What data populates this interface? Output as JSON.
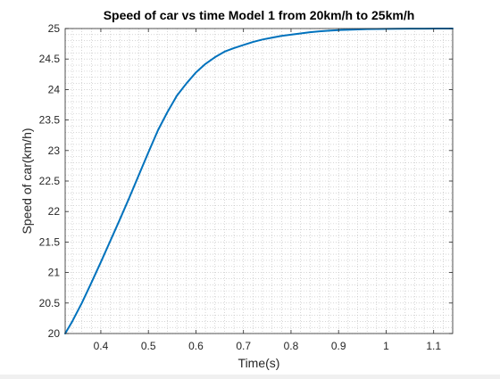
{
  "chart_data": {
    "type": "line",
    "title": "Speed of car vs time Model 1 from 20km/h to 25km/h",
    "xlabel": "Time(s)",
    "ylabel": "Speed of car(km/h)",
    "xlim": [
      0.325,
      1.14
    ],
    "ylim": [
      20,
      25
    ],
    "xticks": [
      0.4,
      0.5,
      0.6,
      0.7,
      0.8,
      0.9,
      1,
      1.1
    ],
    "xtick_labels": [
      "0.4",
      "0.5",
      "0.6",
      "0.7",
      "0.8",
      "0.9",
      "1",
      "1.1"
    ],
    "yticks": [
      20,
      20.5,
      21,
      21.5,
      22,
      22.5,
      23,
      23.5,
      24,
      24.5,
      25
    ],
    "ytick_labels": [
      "20",
      "20.5",
      "21",
      "21.5",
      "22",
      "22.5",
      "23",
      "23.5",
      "24",
      "24.5",
      "25"
    ],
    "grid": true,
    "grid_style": "dotted-minor",
    "legend": "none",
    "colors": {
      "line": "#0072bd",
      "axes": "#262626",
      "grid": "#bdbdbd",
      "figure_background": "#ffffff",
      "axes_background": "#ffffff"
    },
    "series": [
      {
        "x": [
          0.325,
          0.34,
          0.36,
          0.38,
          0.4,
          0.42,
          0.44,
          0.46,
          0.48,
          0.5,
          0.52,
          0.54,
          0.56,
          0.58,
          0.6,
          0.62,
          0.64,
          0.66,
          0.68,
          0.7,
          0.72,
          0.74,
          0.76,
          0.78,
          0.8,
          0.82,
          0.84,
          0.86,
          0.88,
          0.9,
          0.92,
          0.94,
          0.96,
          0.98,
          1.0,
          1.02,
          1.05,
          1.08,
          1.11,
          1.14
        ],
        "y": [
          20.0,
          20.2,
          20.5,
          20.83,
          21.17,
          21.52,
          21.87,
          22.23,
          22.6,
          22.97,
          23.33,
          23.63,
          23.9,
          24.1,
          24.28,
          24.42,
          24.53,
          24.62,
          24.68,
          24.73,
          24.78,
          24.82,
          24.85,
          24.88,
          24.9,
          24.92,
          24.94,
          24.955,
          24.965,
          24.975,
          24.98,
          24.985,
          24.99,
          24.993,
          24.995,
          24.997,
          24.998,
          24.999,
          25.0,
          25.0
        ]
      }
    ]
  }
}
